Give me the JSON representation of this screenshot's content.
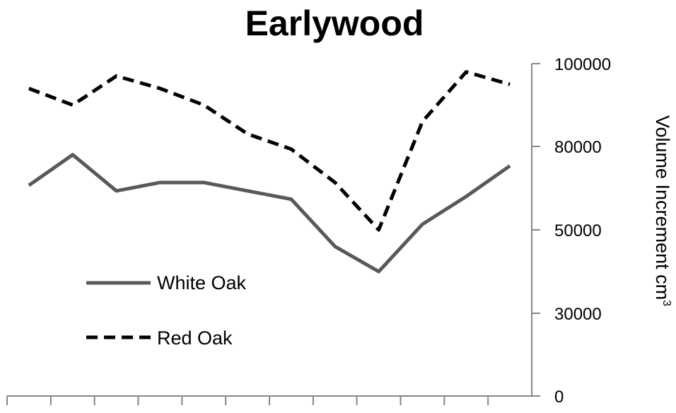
{
  "chart_data": {
    "type": "line",
    "title": "Earlywood",
    "ylabel": "Volume Increment cm",
    "ylabel_superscript": "3",
    "yaxis_position": "right",
    "yticks": [
      {
        "label": "100000",
        "level": 4
      },
      {
        "label": "80000",
        "level": 3
      },
      {
        "label": "50000",
        "level": 2
      },
      {
        "label": "30000",
        "level": 1
      },
      {
        "label": "0",
        "level": 0
      }
    ],
    "x": [
      1,
      2,
      3,
      4,
      5,
      6,
      7,
      8,
      9,
      10,
      11,
      12
    ],
    "xlim": [
      0.5,
      12.5
    ],
    "x_tick_count": 12,
    "series": [
      {
        "name": "White Oak",
        "style": "solid",
        "color": "#595959",
        "values": [
          66000,
          77000,
          64000,
          67000,
          67000,
          64000,
          61000,
          46000,
          40000,
          52000,
          62000,
          73000
        ]
      },
      {
        "name": "Red Oak",
        "style": "dashed",
        "color": "#000000",
        "values": [
          94000,
          90000,
          97000,
          94000,
          90000,
          83000,
          79000,
          67000,
          50000,
          86000,
          98000,
          95000
        ]
      }
    ],
    "legend": {
      "position": "lower-left"
    },
    "grid": false
  }
}
